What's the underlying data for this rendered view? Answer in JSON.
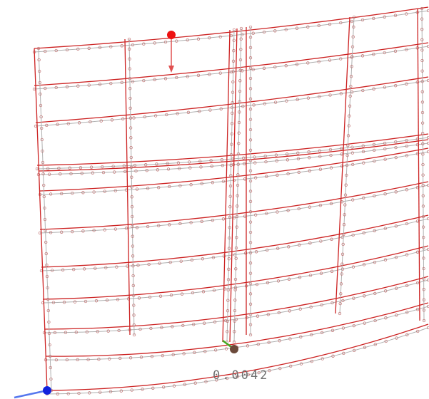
{
  "viewport": {
    "measurement": "0.0042"
  }
}
